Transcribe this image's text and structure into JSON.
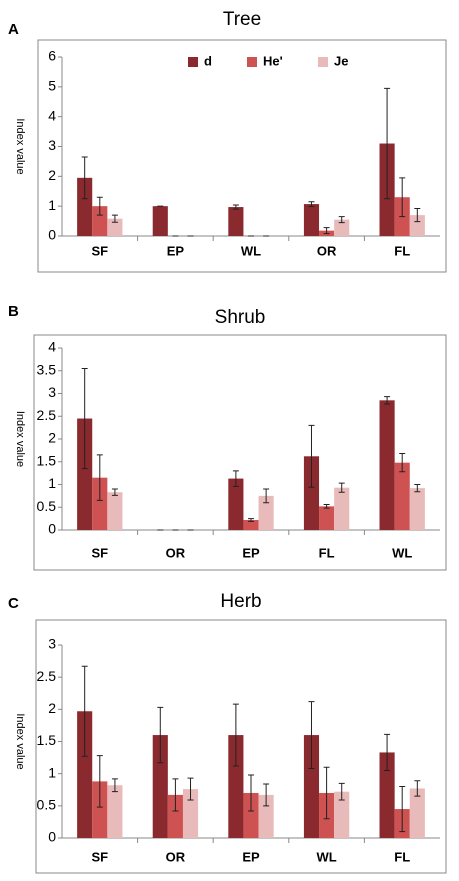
{
  "chart_data": [
    {
      "type": "bar",
      "panel": "A",
      "title": "Tree",
      "y_label": "Index value",
      "legend": "top",
      "categories": [
        "SF",
        "EP",
        "WL",
        "OR",
        "FL"
      ],
      "ylim": [
        0,
        6
      ],
      "yticks": [
        0,
        1,
        2,
        3,
        4,
        5,
        6
      ],
      "series": [
        {
          "name": "d",
          "color": "#8b2a2e",
          "values": [
            1.95,
            1.0,
            0.97,
            1.07,
            3.1
          ],
          "errors": [
            0.7,
            0,
            0.07,
            0.08,
            1.85
          ]
        },
        {
          "name": "He'",
          "color": "#cf5252",
          "values": [
            1.0,
            0,
            0,
            0.18,
            1.3
          ],
          "errors": [
            0.3,
            0,
            0,
            0.1,
            0.65
          ]
        },
        {
          "name": "Je",
          "color": "#e9baba",
          "values": [
            0.58,
            0,
            0,
            0.55,
            0.7
          ],
          "errors": [
            0.12,
            0,
            0,
            0.1,
            0.22
          ]
        }
      ]
    },
    {
      "type": "bar",
      "panel": "B",
      "title": "Shrub",
      "y_label": "Index value",
      "categories": [
        "SF",
        "OR",
        "EP",
        "FL",
        "WL"
      ],
      "ylim": [
        0,
        4
      ],
      "yticks": [
        0,
        0.5,
        1,
        1.5,
        2,
        2.5,
        3,
        3.5,
        4
      ],
      "series": [
        {
          "color": "#8b2a2e",
          "values": [
            2.45,
            0,
            1.13,
            1.62,
            2.85
          ],
          "errors": [
            1.1,
            0,
            0.17,
            0.68,
            0.08
          ]
        },
        {
          "color": "#cf5252",
          "values": [
            1.15,
            0,
            0.22,
            0.52,
            1.48
          ],
          "errors": [
            0.5,
            0,
            0.03,
            0.04,
            0.2
          ]
        },
        {
          "color": "#e9baba",
          "values": [
            0.83,
            0,
            0.75,
            0.93,
            0.92
          ],
          "errors": [
            0.07,
            0,
            0.15,
            0.1,
            0.08
          ]
        }
      ]
    },
    {
      "type": "bar",
      "panel": "C",
      "title": "Herb",
      "y_label": "Index value",
      "categories": [
        "SF",
        "OR",
        "EP",
        "WL",
        "FL"
      ],
      "ylim": [
        0,
        3
      ],
      "yticks": [
        0,
        0.5,
        1,
        1.5,
        2,
        2.5,
        3
      ],
      "series": [
        {
          "color": "#8b2a2e",
          "values": [
            1.97,
            1.6,
            1.6,
            1.6,
            1.33
          ],
          "errors": [
            0.7,
            0.43,
            0.48,
            0.52,
            0.28
          ]
        },
        {
          "color": "#cf5252",
          "values": [
            0.88,
            0.67,
            0.7,
            0.7,
            0.45
          ],
          "errors": [
            0.4,
            0.25,
            0.28,
            0.4,
            0.35
          ]
        },
        {
          "color": "#e9baba",
          "values": [
            0.82,
            0.76,
            0.67,
            0.72,
            0.77
          ],
          "errors": [
            0.1,
            0.17,
            0.17,
            0.13,
            0.12
          ]
        }
      ]
    }
  ]
}
